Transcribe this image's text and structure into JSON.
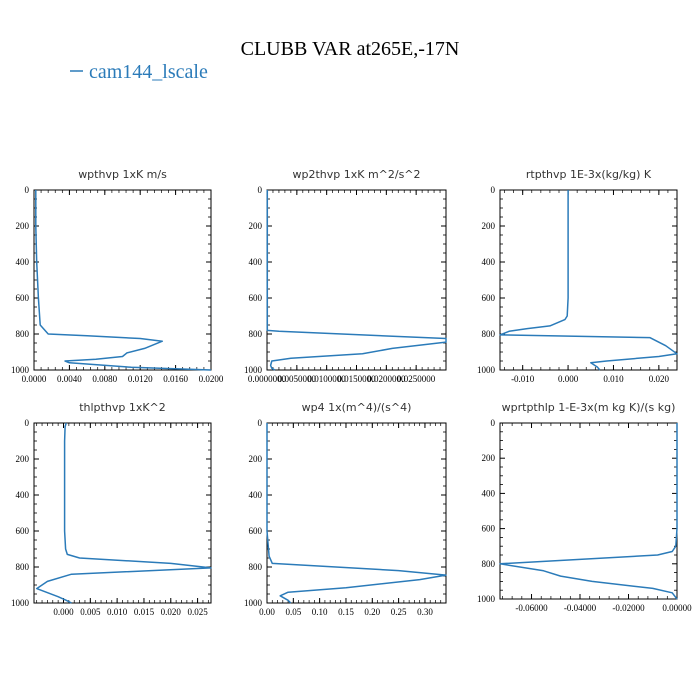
{
  "figure": {
    "title": "CLUBB VAR at265E,-17N",
    "legend_label": "cam144_lscale",
    "line_color": "#2b7bb9"
  },
  "chart_data": [
    {
      "type": "line",
      "title": "wpthvp   1xK m/s",
      "xlim": [
        0,
        0.02
      ],
      "ylim": [
        1000,
        0
      ],
      "x_tick_labels": [
        "0.0000",
        "0.0040",
        "0.0080",
        "0.0120",
        "0.0160",
        "0.0200"
      ],
      "y_tick_labels": [
        "0",
        "200",
        "400",
        "600",
        "800",
        "1000"
      ],
      "series": [
        {
          "name": "cam144_lscale",
          "x": [
            0.0002,
            0.0002,
            0.0003,
            0.0005,
            0.0007,
            0.0016,
            0.006,
            0.012,
            0.0145,
            0.0125,
            0.0105,
            0.01,
            0.007,
            0.0035,
            0.004,
            0.011,
            0.02
          ],
          "y": [
            0,
            200,
            400,
            600,
            750,
            800,
            810,
            825,
            840,
            880,
            905,
            925,
            940,
            950,
            960,
            985,
            1000
          ]
        }
      ]
    },
    {
      "type": "line",
      "title": "wp2thvp   1xK m^2/s^2",
      "xlim": [
        0,
        0.03
      ],
      "ylim": [
        1000,
        0
      ],
      "x_tick_labels": [
        "0.0000000",
        "0.0050000",
        "0.0100000",
        "0.0150000",
        "0.0200000",
        "0.0250000"
      ],
      "y_tick_labels": [
        "0",
        "200",
        "400",
        "600",
        "800",
        "1000"
      ],
      "series": [
        {
          "name": "cam144_lscale",
          "x": [
            5e-05,
            5e-05,
            5e-05,
            5e-05,
            5e-05,
            0.002,
            0.03,
            0.03,
            0.021,
            0.016,
            0.004,
            0.0008,
            0.0006,
            0.0008,
            0.0013
          ],
          "y": [
            0,
            200,
            400,
            600,
            780,
            785,
            825,
            845,
            880,
            910,
            935,
            950,
            975,
            990,
            1000
          ]
        }
      ]
    },
    {
      "type": "line",
      "title": "rtpthvp   1E-3x(kg/kg) K",
      "xlim": [
        -0.015,
        0.024
      ],
      "ylim": [
        1000,
        0
      ],
      "x_tick_labels": [
        "-0.010",
        "0.000",
        "0.010",
        "0.020"
      ],
      "y_tick_labels": [
        "0",
        "200",
        "400",
        "600",
        "800",
        "1000"
      ],
      "series": [
        {
          "name": "cam144_lscale",
          "x": [
            0.0,
            0.0,
            0.0,
            0.0,
            -0.0002,
            -0.0007,
            -0.004,
            -0.009,
            -0.013,
            -0.015,
            0.018,
            0.0215,
            0.024,
            0.02,
            0.0085,
            0.005,
            0.0065,
            0.007
          ],
          "y": [
            0,
            200,
            400,
            600,
            700,
            720,
            755,
            770,
            785,
            805,
            820,
            865,
            910,
            925,
            950,
            960,
            985,
            1000
          ]
        }
      ]
    },
    {
      "type": "line",
      "title": "thlpthvp   1xK^2",
      "xlim": [
        -0.0055,
        0.0275
      ],
      "ylim": [
        1000,
        0
      ],
      "x_tick_labels": [
        "0.000",
        "0.005",
        "0.010",
        "0.015",
        "0.020",
        "0.025"
      ],
      "y_tick_labels": [
        "0",
        "200",
        "400",
        "600",
        "800",
        "1000"
      ],
      "series": [
        {
          "name": "cam144_lscale",
          "x": [
            0.0005,
            0.0003,
            0.0002,
            0.0002,
            0.0002,
            0.0004,
            0.0007,
            0.003,
            0.02,
            0.0275,
            0.0015,
            -0.003,
            -0.005,
            -0.001,
            0.0005,
            0.0015
          ],
          "y": [
            0,
            20,
            100,
            300,
            600,
            700,
            730,
            750,
            780,
            805,
            840,
            880,
            920,
            965,
            985,
            1000
          ]
        }
      ]
    },
    {
      "type": "line",
      "title": "wp4   1x(m^4)/(s^4)",
      "xlim": [
        0,
        0.34
      ],
      "ylim": [
        1000,
        0
      ],
      "x_tick_labels": [
        "0.00",
        "0.05",
        "0.10",
        "0.15",
        "0.20",
        "0.25",
        "0.30"
      ],
      "y_tick_labels": [
        "0",
        "200",
        "400",
        "600",
        "800",
        "1000"
      ],
      "series": [
        {
          "name": "cam144_lscale",
          "x": [
            0.0,
            0.0,
            0.0,
            0.0,
            0.004,
            0.01,
            0.25,
            0.34,
            0.29,
            0.15,
            0.04,
            0.025,
            0.04,
            0.045
          ],
          "y": [
            0,
            200,
            400,
            600,
            740,
            780,
            820,
            845,
            870,
            915,
            940,
            960,
            985,
            1000
          ]
        }
      ]
    },
    {
      "type": "line",
      "title": "wprtpthlp   1-E-3x(m kg K)/(s kg)",
      "xlim": [
        -0.073,
        0.0
      ],
      "ylim": [
        1000,
        0
      ],
      "x_tick_labels": [
        "-0.06000",
        "-0.04000",
        "-0.02000",
        "0.00000"
      ],
      "y_tick_labels": [
        "0",
        "200",
        "400",
        "600",
        "800",
        "1000"
      ],
      "series": [
        {
          "name": "cam144_lscale",
          "x": [
            0.0,
            0.0,
            0.0,
            0.0,
            -0.0005,
            -0.002,
            -0.008,
            -0.073,
            -0.055,
            -0.048,
            -0.035,
            -0.01,
            -0.002,
            0.0
          ],
          "y": [
            0,
            200,
            400,
            600,
            700,
            730,
            750,
            800,
            840,
            870,
            900,
            940,
            965,
            1000
          ]
        }
      ]
    }
  ]
}
